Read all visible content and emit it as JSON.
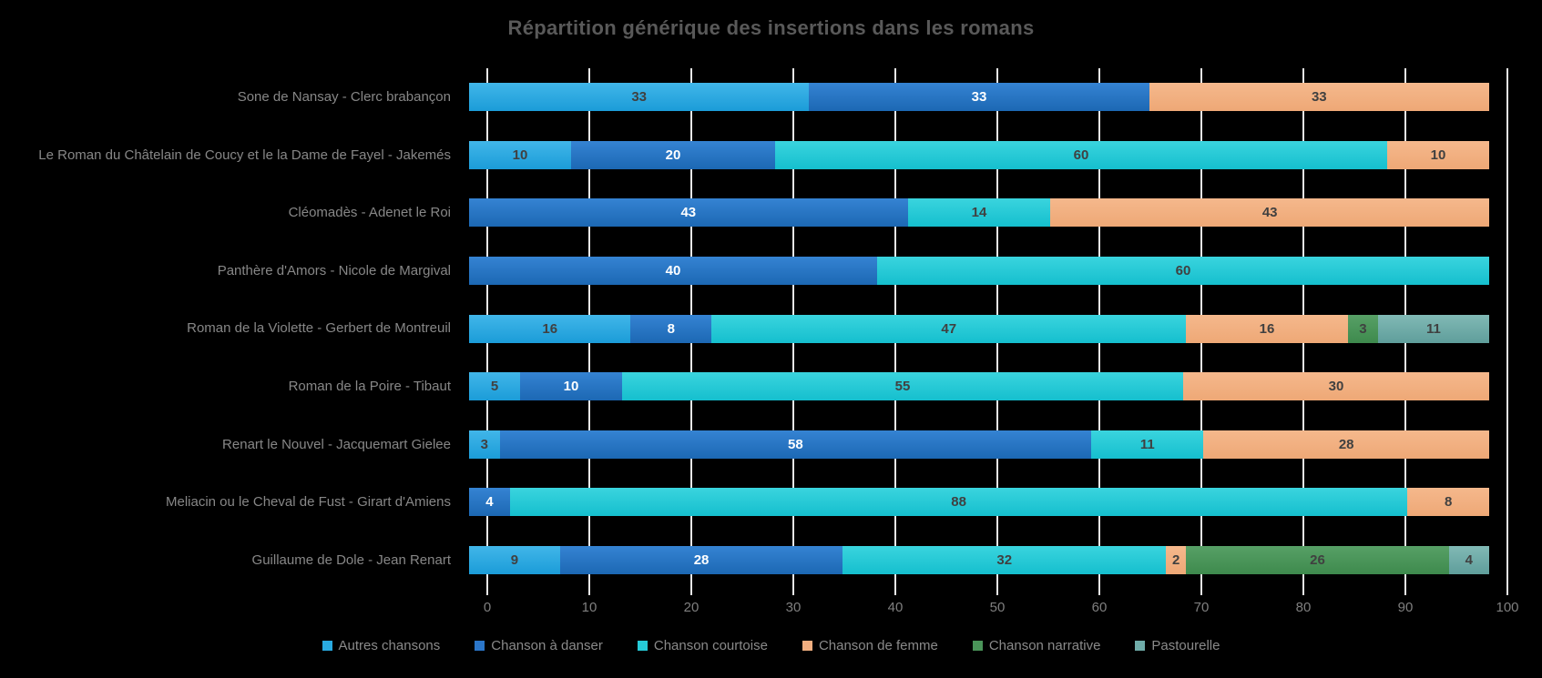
{
  "title": "Répartition générique des insertions dans les romans",
  "colors": {
    "background": "#000000",
    "title_text": "#595959",
    "axis_text": "#7F7F7F",
    "category_text": "#878787",
    "legend_text": "#8A8A8A",
    "gridline": "#E8E8E8",
    "value_label_dark": "#404040",
    "value_label_light": "#FFFFFF"
  },
  "chart_data": {
    "type": "bar",
    "variant": "horizontal-stacked-100percent",
    "title": "Répartition générique des insertions dans les romans",
    "grid": true,
    "legend_position": "bottom",
    "x_axis": {
      "min": 0,
      "max": 100,
      "step": 10,
      "tick_labels": [
        "0",
        "10",
        "20",
        "30",
        "40",
        "50",
        "60",
        "70",
        "80",
        "90",
        "100"
      ]
    },
    "categories": [
      "Sone de Nansay - Clerc brabançon",
      "Le Roman du Châtelain de Coucy et le la Dame de Fayel - Jakemés",
      "Cléomadès - Adenet le Roi",
      "Panthère d'Amors - Nicole de Margival",
      "Roman de la Violette - Gerbert de Montreuil",
      "Roman de la Poire - Tibaut",
      "Renart le Nouvel - Jacquemart Gielee",
      "Meliacin ou le Cheval de Fust - Girart d'Amiens",
      "Guillaume de Dole - Jean Renart"
    ],
    "series": [
      {
        "name": "Autres chansons",
        "color": "#29ABE2",
        "gradient": [
          "#41B6E9",
          "#1B9CD8"
        ],
        "value_label_color": "#404040",
        "values": [
          33,
          10,
          null,
          null,
          16,
          5,
          3,
          null,
          9
        ]
      },
      {
        "name": "Chanson à danser",
        "color": "#2B76C9",
        "gradient": [
          "#3583D3",
          "#1C68B4"
        ],
        "value_label_color": "#FFFFFF",
        "values": [
          33,
          20,
          43,
          40,
          8,
          10,
          58,
          4,
          28
        ]
      },
      {
        "name": "Chanson courtoise",
        "color": "#26CBD8",
        "gradient": [
          "#3AD4DE",
          "#15BFCE"
        ],
        "value_label_color": "#404040",
        "values": [
          null,
          60,
          14,
          60,
          47,
          55,
          11,
          88,
          32
        ]
      },
      {
        "name": "Chanson de femme",
        "color": "#F2AF80",
        "gradient": [
          "#F5B88C",
          "#EEA876"
        ],
        "value_label_color": "#404040",
        "values": [
          33,
          10,
          43,
          null,
          16,
          30,
          28,
          8,
          2
        ]
      },
      {
        "name": "Chanson narrative",
        "color": "#4A9459",
        "gradient": [
          "#57A066",
          "#3E8A4D"
        ],
        "value_label_color": "#404040",
        "values": [
          null,
          null,
          null,
          null,
          3,
          null,
          null,
          null,
          26
        ]
      },
      {
        "name": "Pastourelle",
        "color": "#6FACA9",
        "gradient": [
          "#81B9B5",
          "#5F9E9B"
        ],
        "value_label_color": "#404040",
        "values": [
          null,
          null,
          null,
          null,
          11,
          null,
          null,
          null,
          4
        ]
      }
    ]
  }
}
